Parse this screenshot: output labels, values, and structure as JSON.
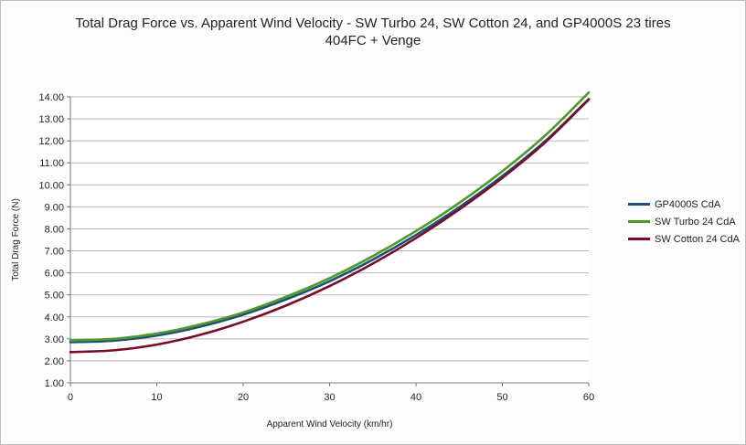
{
  "chart_data": {
    "type": "line",
    "title": "Total Drag Force vs. Apparent Wind Velocity - SW Turbo 24, SW Cotton 24, and GP4000S 23 tires",
    "subtitle": "404FC + Venge",
    "xlabel": "Apparent Wind Velocity (km/hr)",
    "ylabel": "Total Drag Force (N)",
    "xlim": [
      0,
      60
    ],
    "ylim": [
      1.0,
      14.0
    ],
    "x_ticks": [
      "0",
      "10",
      "20",
      "30",
      "40",
      "50",
      "60"
    ],
    "y_ticks": [
      "1.00",
      "2.00",
      "3.00",
      "4.00",
      "5.00",
      "6.00",
      "7.00",
      "8.00",
      "9.00",
      "10.00",
      "11.00",
      "12.00",
      "13.00",
      "14.00"
    ],
    "grid": "horizontal",
    "legend_position": "right",
    "x": [
      0,
      5,
      10,
      15,
      20,
      25,
      30,
      35,
      40,
      45,
      50,
      55,
      60
    ],
    "series": [
      {
        "name": "GP4000S CdA",
        "color": "#1f4e79",
        "values": [
          2.85,
          2.92,
          3.15,
          3.55,
          4.1,
          4.8,
          5.62,
          6.6,
          7.72,
          8.98,
          10.4,
          12.0,
          13.9
        ]
      },
      {
        "name": "SW Turbo 24 CdA",
        "color": "#4d9a2a",
        "values": [
          2.93,
          3.0,
          3.24,
          3.65,
          4.2,
          4.92,
          5.76,
          6.76,
          7.9,
          9.18,
          10.62,
          12.26,
          14.2
        ]
      },
      {
        "name": "SW Cotton 24 CdA",
        "color": "#7a0d26",
        "values": [
          2.4,
          2.48,
          2.74,
          3.18,
          3.78,
          4.52,
          5.4,
          6.42,
          7.58,
          8.88,
          10.32,
          11.95,
          13.88
        ]
      }
    ]
  }
}
